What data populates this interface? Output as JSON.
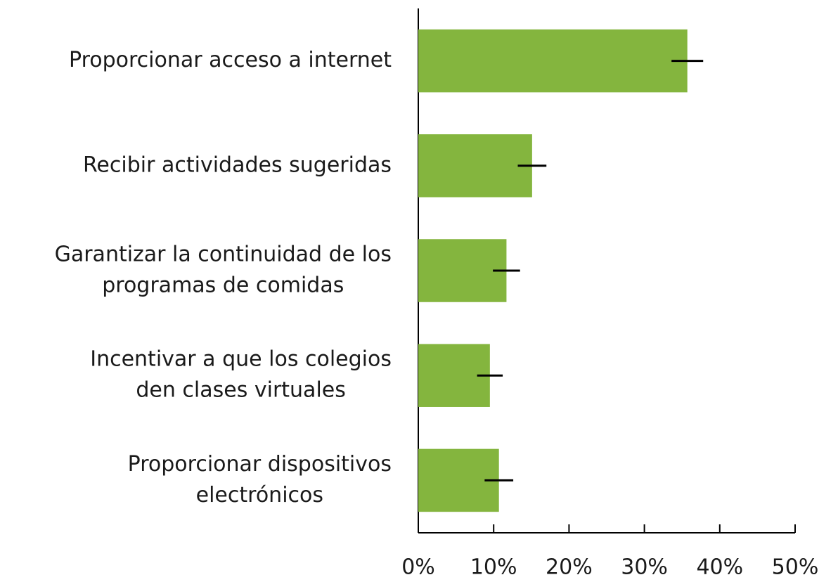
{
  "chart_data": {
    "type": "bar",
    "orientation": "horizontal",
    "categories": [
      [
        "Proporcionar acceso a internet"
      ],
      [
        "Recibir actividades sugeridas"
      ],
      [
        "Garantizar la continuidad de los",
        "programas de comidas"
      ],
      [
        "Incentivar a que los colegios",
        "den clases virtuales"
      ],
      [
        "Proporcionar dispositivos",
        "electrónicos"
      ]
    ],
    "values": [
      35.7,
      15.1,
      11.7,
      9.5,
      10.7
    ],
    "errors": [
      2.1,
      1.9,
      1.8,
      1.7,
      1.9
    ],
    "color": "#84b53e",
    "error_color": "#000000",
    "xlim": [
      0,
      50
    ],
    "xticks": [
      {
        "value": 0,
        "label": "0%"
      },
      {
        "value": 10,
        "label": "10%"
      },
      {
        "value": 20,
        "label": "20%"
      },
      {
        "value": 30,
        "label": "30%"
      },
      {
        "value": 40,
        "label": "40%"
      },
      {
        "value": 50,
        "label": "50%"
      }
    ],
    "grid": false
  }
}
